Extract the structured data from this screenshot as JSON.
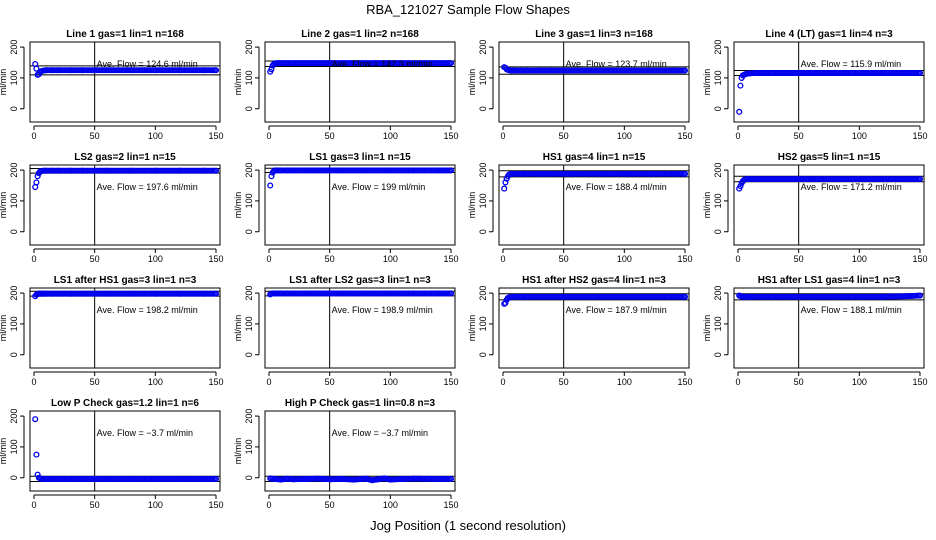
{
  "page": {
    "title": "RBA_121027  Sample Flow Shapes",
    "x_axis_title": "Jog Position (1 second resolution)"
  },
  "style": {
    "point_color": "#0000ee",
    "line_color": "#000000"
  },
  "chart_data": [
    {
      "type": "scatter",
      "title": "Line 1 gas=1 lin=1 n=168",
      "ylabel": "ml/min",
      "xlim": [
        0,
        150
      ],
      "ylim": [
        -30,
        210
      ],
      "xticks": [
        0,
        50,
        100,
        150
      ],
      "yticks": [
        0,
        100,
        200
      ],
      "vline": 50,
      "hlines": [
        110,
        139
      ],
      "avg_label": "Ave. Flow = 124.6  ml/min",
      "avg_value": 124.6,
      "x": [
        1,
        2,
        3,
        4,
        5,
        6,
        8,
        10,
        15,
        20,
        30,
        40,
        60,
        80,
        100,
        120,
        140,
        150
      ],
      "y": [
        145,
        130,
        110,
        112,
        118,
        122,
        124,
        125,
        125,
        125,
        125,
        125,
        125,
        125,
        125,
        125,
        125,
        125
      ]
    },
    {
      "type": "scatter",
      "title": "Line 2 gas=1 lin=2 n=168",
      "ylabel": "ml/min",
      "xlim": [
        0,
        150
      ],
      "ylim": [
        -30,
        210
      ],
      "xticks": [
        0,
        50,
        100,
        150
      ],
      "yticks": [
        0,
        100,
        200
      ],
      "vline": 50,
      "hlines": [
        137,
        155
      ],
      "avg_label": "Ave. Flow = 147.3  ml/min",
      "avg_value": 147.3,
      "x": [
        1,
        2,
        3,
        4,
        5,
        6,
        8,
        10,
        15,
        20,
        30,
        40,
        60,
        80,
        100,
        120,
        140,
        150
      ],
      "y": [
        120,
        128,
        140,
        145,
        147,
        148,
        148,
        148,
        148,
        148,
        148,
        148,
        148,
        148,
        148,
        148,
        148,
        148
      ]
    },
    {
      "type": "scatter",
      "title": "Line 3 gas=1 lin=3 n=168",
      "ylabel": "ml/min",
      "xlim": [
        0,
        150
      ],
      "ylim": [
        -30,
        210
      ],
      "xticks": [
        0,
        50,
        100,
        150
      ],
      "yticks": [
        0,
        100,
        200
      ],
      "vline": 50,
      "hlines": [
        112,
        136
      ],
      "avg_label": "Ave. Flow = 123.7  ml/min",
      "avg_value": 123.7,
      "x": [
        1,
        2,
        3,
        4,
        5,
        6,
        8,
        10,
        15,
        20,
        30,
        40,
        60,
        80,
        100,
        120,
        140,
        150
      ],
      "y": [
        135,
        133,
        128,
        126,
        125,
        124,
        124,
        124,
        124,
        124,
        124,
        124,
        124,
        124,
        124,
        124,
        124,
        124
      ]
    },
    {
      "type": "scatter",
      "title": "Line 4 (LT) gas=1 lin=4 n=3",
      "ylabel": "ml/min",
      "xlim": [
        0,
        150
      ],
      "ylim": [
        -30,
        210
      ],
      "xticks": [
        0,
        50,
        100,
        150
      ],
      "yticks": [
        0,
        100,
        200
      ],
      "vline": 50,
      "hlines": [
        108,
        124
      ],
      "avg_label": "Ave. Flow = 115.9  ml/min",
      "avg_value": 115.9,
      "x": [
        1,
        2,
        3,
        4,
        5,
        6,
        8,
        10,
        15,
        20,
        30,
        40,
        60,
        80,
        100,
        120,
        140,
        150
      ],
      "y": [
        -10,
        75,
        100,
        108,
        110,
        112,
        114,
        115,
        116,
        116,
        116,
        116,
        116,
        116,
        116,
        116,
        116,
        116
      ]
    },
    {
      "type": "scatter",
      "title": "LS2 gas=2 lin=1 n=15",
      "ylabel": "ml/min",
      "xlim": [
        0,
        150
      ],
      "ylim": [
        -30,
        210
      ],
      "xticks": [
        0,
        50,
        100,
        150
      ],
      "yticks": [
        0,
        100,
        200
      ],
      "vline": 50,
      "hlines": [
        190,
        205
      ],
      "avg_label": "Ave. Flow = 197.6  ml/min",
      "avg_value": 197.6,
      "x": [
        1,
        2,
        3,
        4,
        5,
        6,
        8,
        10,
        15,
        20,
        30,
        40,
        60,
        80,
        100,
        120,
        140,
        150
      ],
      "y": [
        145,
        160,
        180,
        190,
        195,
        197,
        198,
        198,
        198,
        198,
        198,
        198,
        198,
        198,
        198,
        198,
        198,
        198
      ]
    },
    {
      "type": "scatter",
      "title": "LS1 gas=3 lin=1 n=15",
      "ylabel": "ml/min",
      "xlim": [
        0,
        150
      ],
      "ylim": [
        -30,
        210
      ],
      "xticks": [
        0,
        50,
        100,
        150
      ],
      "yticks": [
        0,
        100,
        200
      ],
      "vline": 50,
      "hlines": [
        192,
        206
      ],
      "avg_label": "Ave. Flow = 199  ml/min",
      "avg_value": 199,
      "x": [
        1,
        2,
        3,
        4,
        5,
        6,
        8,
        10,
        15,
        20,
        30,
        40,
        60,
        80,
        100,
        120,
        140,
        150
      ],
      "y": [
        150,
        180,
        192,
        197,
        199,
        199,
        199,
        199,
        199,
        199,
        199,
        199,
        199,
        199,
        199,
        199,
        199,
        199
      ]
    },
    {
      "type": "scatter",
      "title": "HS1 gas=4 lin=1 n=15",
      "ylabel": "ml/min",
      "xlim": [
        0,
        150
      ],
      "ylim": [
        -30,
        210
      ],
      "xticks": [
        0,
        50,
        100,
        150
      ],
      "yticks": [
        0,
        100,
        200
      ],
      "vline": 50,
      "hlines": [
        178,
        198
      ],
      "avg_label": "Ave. Flow = 188.4  ml/min",
      "avg_value": 188.4,
      "x": [
        1,
        2,
        3,
        4,
        5,
        6,
        8,
        10,
        15,
        20,
        30,
        40,
        60,
        80,
        100,
        120,
        140,
        150
      ],
      "y": [
        140,
        160,
        172,
        180,
        185,
        187,
        188,
        188,
        188,
        188,
        188,
        188,
        188,
        188,
        188,
        188,
        188,
        188
      ]
    },
    {
      "type": "scatter",
      "title": "HS2 gas=5 lin=1 n=15",
      "ylabel": "ml/min",
      "xlim": [
        0,
        150
      ],
      "ylim": [
        -30,
        210
      ],
      "xticks": [
        0,
        50,
        100,
        150
      ],
      "yticks": [
        0,
        100,
        200
      ],
      "vline": 50,
      "hlines": [
        162,
        180
      ],
      "avg_label": "Ave. Flow = 171.2  ml/min",
      "avg_value": 171.2,
      "x": [
        1,
        2,
        3,
        4,
        5,
        6,
        8,
        10,
        15,
        20,
        30,
        40,
        60,
        80,
        100,
        120,
        140,
        150
      ],
      "y": [
        140,
        148,
        158,
        164,
        168,
        170,
        171,
        171,
        171,
        171,
        171,
        171,
        171,
        171,
        171,
        171,
        171,
        171
      ]
    },
    {
      "type": "scatter",
      "title": "LS1 after HS1 gas=3 lin=1 n=3",
      "ylabel": "ml/min",
      "xlim": [
        0,
        150
      ],
      "ylim": [
        -30,
        210
      ],
      "xticks": [
        0,
        50,
        100,
        150
      ],
      "yticks": [
        0,
        100,
        200
      ],
      "vline": 50,
      "hlines": [
        190,
        206
      ],
      "avg_label": "Ave. Flow = 198.2  ml/min",
      "avg_value": 198.2,
      "x": [
        1,
        2,
        3,
        4,
        5,
        6,
        8,
        10,
        15,
        20,
        30,
        40,
        60,
        80,
        100,
        120,
        140,
        150
      ],
      "y": [
        190,
        195,
        197,
        198,
        198,
        198,
        198,
        198,
        198,
        198,
        198,
        198,
        198,
        198,
        198,
        198,
        198,
        198
      ]
    },
    {
      "type": "scatter",
      "title": "LS1 after LS2 gas=3 lin=1 n=3",
      "ylabel": "ml/min",
      "xlim": [
        0,
        150
      ],
      "ylim": [
        -30,
        210
      ],
      "xticks": [
        0,
        50,
        100,
        150
      ],
      "yticks": [
        0,
        100,
        200
      ],
      "vline": 50,
      "hlines": [
        191,
        206
      ],
      "avg_label": "Ave. Flow = 198.9  ml/min",
      "avg_value": 198.9,
      "x": [
        1,
        2,
        3,
        4,
        5,
        6,
        8,
        10,
        15,
        20,
        30,
        40,
        60,
        80,
        100,
        120,
        140,
        150
      ],
      "y": [
        196,
        198,
        199,
        199,
        199,
        199,
        199,
        199,
        199,
        199,
        199,
        199,
        199,
        199,
        199,
        199,
        199,
        199
      ]
    },
    {
      "type": "scatter",
      "title": "HS1 after HS2 gas=4 lin=1 n=3",
      "ylabel": "ml/min",
      "xlim": [
        0,
        150
      ],
      "ylim": [
        -30,
        210
      ],
      "xticks": [
        0,
        50,
        100,
        150
      ],
      "yticks": [
        0,
        100,
        200
      ],
      "vline": 50,
      "hlines": [
        178,
        198
      ],
      "avg_label": "Ave. Flow = 187.9  ml/min",
      "avg_value": 187.9,
      "x": [
        1,
        2,
        3,
        4,
        5,
        6,
        8,
        10,
        15,
        20,
        30,
        40,
        60,
        80,
        100,
        120,
        140,
        150
      ],
      "y": [
        165,
        168,
        178,
        184,
        186,
        187,
        188,
        188,
        188,
        188,
        188,
        188,
        188,
        188,
        188,
        188,
        188,
        188
      ]
    },
    {
      "type": "scatter",
      "title": "HS1 after LS1 gas=4 lin=1 n=3",
      "ylabel": "ml/min",
      "xlim": [
        0,
        150
      ],
      "ylim": [
        -30,
        210
      ],
      "xticks": [
        0,
        50,
        100,
        150
      ],
      "yticks": [
        0,
        100,
        200
      ],
      "vline": 50,
      "hlines": [
        178,
        198
      ],
      "avg_label": "Ave. Flow = 188.1  ml/min",
      "avg_value": 188.1,
      "x": [
        1,
        2,
        3,
        4,
        5,
        6,
        8,
        10,
        15,
        20,
        30,
        40,
        60,
        80,
        100,
        120,
        140,
        150
      ],
      "y": [
        192,
        190,
        189,
        188,
        188,
        188,
        188,
        188,
        188,
        188,
        188,
        188,
        188,
        188,
        188,
        188,
        190,
        192
      ]
    },
    {
      "type": "scatter",
      "title": "Low P Check gas=1.2 lin=1 n=6",
      "ylabel": "ml/min",
      "xlim": [
        0,
        150
      ],
      "ylim": [
        -30,
        210
      ],
      "xticks": [
        0,
        50,
        100,
        150
      ],
      "yticks": [
        0,
        100,
        200
      ],
      "vline": 50,
      "hlines": [
        -12,
        5
      ],
      "avg_label": "Ave. Flow = −3.7  ml/min",
      "avg_value": -3.7,
      "x": [
        1,
        2,
        3,
        4,
        5,
        6,
        8,
        10,
        15,
        20,
        30,
        40,
        60,
        80,
        100,
        120,
        140,
        150
      ],
      "y": [
        190,
        75,
        10,
        0,
        -2,
        -3,
        -4,
        -4,
        -4,
        -4,
        -4,
        -4,
        -4,
        -4,
        -4,
        -4,
        -4,
        -4
      ]
    },
    {
      "type": "scatter",
      "title": "High P Check gas=1 lin=0.8 n=3",
      "ylabel": "ml/min",
      "xlim": [
        0,
        150
      ],
      "ylim": [
        -30,
        210
      ],
      "xticks": [
        0,
        50,
        100,
        150
      ],
      "yticks": [
        0,
        100,
        200
      ],
      "vline": 50,
      "hlines": [
        -12,
        5
      ],
      "avg_label": "Ave. Flow = −3.7  ml/min",
      "avg_value": -3.7,
      "x": [
        1,
        5,
        10,
        15,
        20,
        30,
        40,
        50,
        60,
        70,
        80,
        85,
        90,
        95,
        100,
        110,
        120,
        140,
        150
      ],
      "y": [
        -2,
        -4,
        -6,
        -3,
        -5,
        -4,
        -3,
        -5,
        -4,
        -6,
        -3,
        -8,
        -5,
        -2,
        -6,
        -4,
        -3,
        -4,
        -4
      ]
    }
  ]
}
